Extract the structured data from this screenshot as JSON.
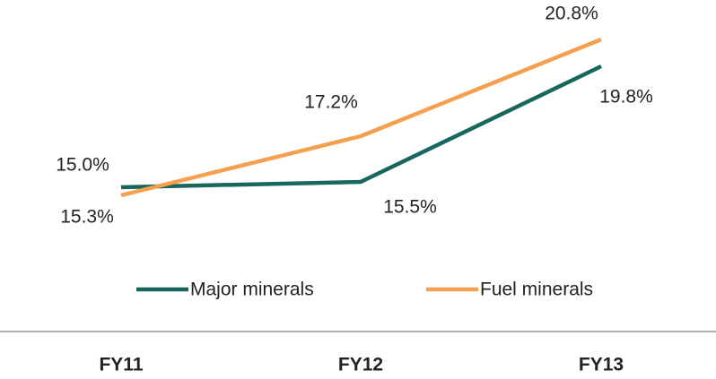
{
  "chart_data": {
    "type": "line",
    "categories": [
      "FY11",
      "FY12",
      "FY13"
    ],
    "series": [
      {
        "name": "Major minerals",
        "color": "#17675e",
        "values": [
          15.3,
          15.5,
          19.8
        ],
        "value_labels": [
          "15.3%",
          "15.5%",
          "19.8%"
        ]
      },
      {
        "name": "Fuel minerals",
        "color": "#f5a04f",
        "values": [
          15.0,
          17.2,
          20.8
        ],
        "value_labels": [
          "15.0%",
          "17.2%",
          "20.8%"
        ]
      }
    ],
    "ylim": [
      12,
      22
    ],
    "legend": "bottom"
  }
}
